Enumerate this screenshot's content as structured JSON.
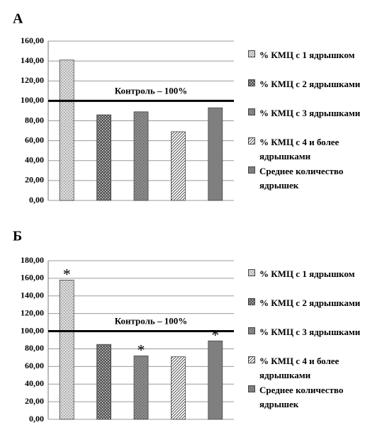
{
  "chart_data": [
    {
      "type": "bar",
      "panel_label": "А",
      "ylim": [
        0,
        160
      ],
      "yticks": [
        {
          "value": 0,
          "label": "0,00"
        },
        {
          "value": 20,
          "label": "20,00"
        },
        {
          "value": 40,
          "label": "40,00"
        },
        {
          "value": 60,
          "label": "60,00"
        },
        {
          "value": 80,
          "label": "80,00"
        },
        {
          "value": 100,
          "label": "100,00"
        },
        {
          "value": 120,
          "label": "120,00"
        },
        {
          "value": 140,
          "label": "140,00"
        },
        {
          "value": 160,
          "label": "160,00"
        }
      ],
      "grid": true,
      "reference_line": {
        "value": 100,
        "label": "Контроль – 100%"
      },
      "series": [
        {
          "name": "% КМЦ с 1 ядрышком",
          "color": "#d9d9d9",
          "pattern": "light-dots",
          "values": [
            141
          ]
        },
        {
          "name": "% КМЦ с 2 ядрышками",
          "color": "#595959",
          "pattern": "dark-dots",
          "values": [
            86
          ]
        },
        {
          "name": "% КМЦ с 3 ядрышками",
          "color": "#8c8c8c",
          "pattern": "mid-dots",
          "values": [
            89
          ]
        },
        {
          "name": "% КМЦ с 4 и более ядрышками",
          "color": "#ffffff",
          "pattern": "hatch",
          "values": [
            69
          ]
        },
        {
          "name": "Среднее количество ядрышек",
          "color": "#7f7f7f",
          "pattern": "solid",
          "values": [
            93
          ]
        }
      ]
    },
    {
      "type": "bar",
      "panel_label": "Б",
      "ylim": [
        0,
        180
      ],
      "yticks": [
        {
          "value": 0,
          "label": "0,00"
        },
        {
          "value": 20,
          "label": "20,00"
        },
        {
          "value": 40,
          "label": "40,00"
        },
        {
          "value": 60,
          "label": "60,00"
        },
        {
          "value": 80,
          "label": "80,00"
        },
        {
          "value": 100,
          "label": "100,00"
        },
        {
          "value": 120,
          "label": "120,00"
        },
        {
          "value": 140,
          "label": "140,00"
        },
        {
          "value": 160,
          "label": "160,00"
        },
        {
          "value": 180,
          "label": "180,00"
        }
      ],
      "grid": true,
      "reference_line": {
        "value": 100,
        "label": "Контроль – 100%"
      },
      "significance_mark": "*",
      "series": [
        {
          "name": "% КМЦ с 1 ядрышком",
          "color": "#d9d9d9",
          "pattern": "light-dots",
          "values": [
            158
          ],
          "significant": true
        },
        {
          "name": "% КМЦ с 2 ядрышками",
          "color": "#595959",
          "pattern": "dark-dots",
          "values": [
            85
          ],
          "significant": false
        },
        {
          "name": "% КМЦ с 3 ядрышками",
          "color": "#8c8c8c",
          "pattern": "mid-dots",
          "values": [
            72
          ],
          "significant": true
        },
        {
          "name": "% КМЦ с 4 и более ядрышками",
          "color": "#ffffff",
          "pattern": "hatch",
          "values": [
            71
          ],
          "significant": false
        },
        {
          "name": "Среднее количество ядрышек",
          "color": "#7f7f7f",
          "pattern": "solid",
          "values": [
            89
          ],
          "significant": true
        }
      ]
    }
  ]
}
